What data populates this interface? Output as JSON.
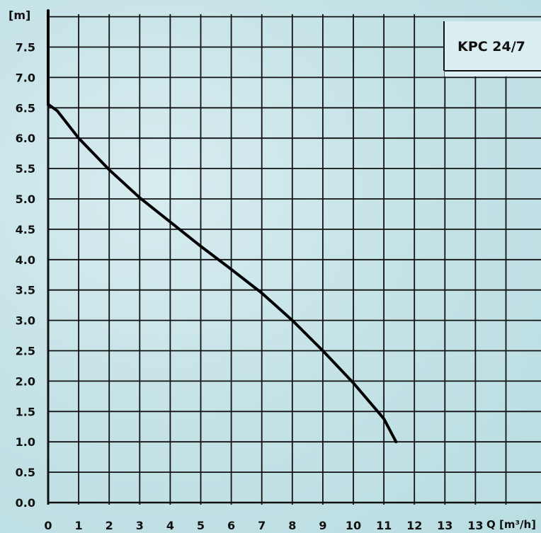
{
  "chart_data": {
    "type": "line",
    "title": "KPC 24/7",
    "ylabel": "[m]",
    "xlabel": "Q [m³/h]",
    "x_tick_labels": [
      "0",
      "1",
      "2",
      "3",
      "4",
      "5",
      "6",
      "7",
      "8",
      "9",
      "10",
      "11",
      "12",
      "13",
      "13"
    ],
    "y_tick_labels": [
      "0.0",
      "0.5",
      "1.0",
      "1.5",
      "2.0",
      "2.5",
      "3.0",
      "3.5",
      "4.0",
      "4.5",
      "5.0",
      "5.5",
      "6.0",
      "6.5",
      "7.0",
      "7.5"
    ],
    "xlim": [
      0,
      15.1
    ],
    "ylim": [
      0,
      8.1
    ],
    "grid": true,
    "series": [
      {
        "x": [
          0,
          0,
          0.02,
          0.3,
          1,
          2,
          3,
          4,
          5,
          6,
          7,
          8,
          9,
          10,
          11,
          11.4
        ],
        "y": [
          8.1,
          6.55,
          6.55,
          6.45,
          6.0,
          5.48,
          5.02,
          4.62,
          4.22,
          3.84,
          3.45,
          3.0,
          2.5,
          1.97,
          1.38,
          1.0
        ]
      }
    ]
  }
}
